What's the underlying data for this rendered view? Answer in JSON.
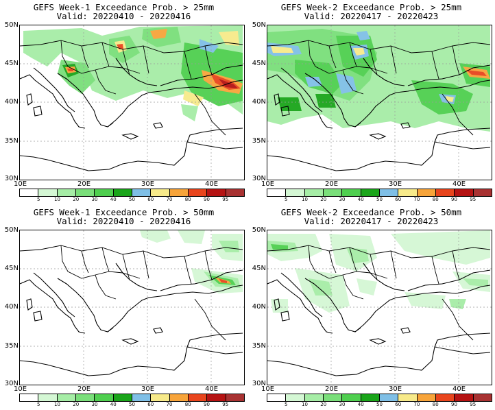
{
  "panels": [
    {
      "title": "GEFS Week-1 Exceedance Prob. > 25mm",
      "valid": "Valid: 20220410 - 20220416"
    },
    {
      "title": "GEFS Week-2 Exceedance Prob. > 25mm",
      "valid": "Valid: 20220417 - 20220423"
    },
    {
      "title": "GEFS Week-1 Exceedance Prob. > 50mm",
      "valid": "Valid: 20220410 - 20220416"
    },
    {
      "title": "GEFS Week-2 Exceedance Prob. > 50mm",
      "valid": "Valid: 20220417 - 20220423"
    }
  ],
  "lat_labels": [
    "50N",
    "45N",
    "40N",
    "35N",
    "30N"
  ],
  "lon_labels": [
    "10E",
    "20E",
    "30E",
    "40E"
  ],
  "colorbar": {
    "labels": [
      "5",
      "10",
      "20",
      "30",
      "40",
      "50",
      "60",
      "70",
      "80",
      "90",
      "95"
    ],
    "colors": [
      "#ffffff",
      "#d4f7d4",
      "#a6eda6",
      "#7adf7a",
      "#4fcf4f",
      "#1aa51a",
      "#7fbfe6",
      "#f7ea8a",
      "#f7a43a",
      "#e8451d",
      "#b51313",
      "#a83232"
    ]
  },
  "colors": {
    "coast": "#000000",
    "grid": "#999999"
  }
}
